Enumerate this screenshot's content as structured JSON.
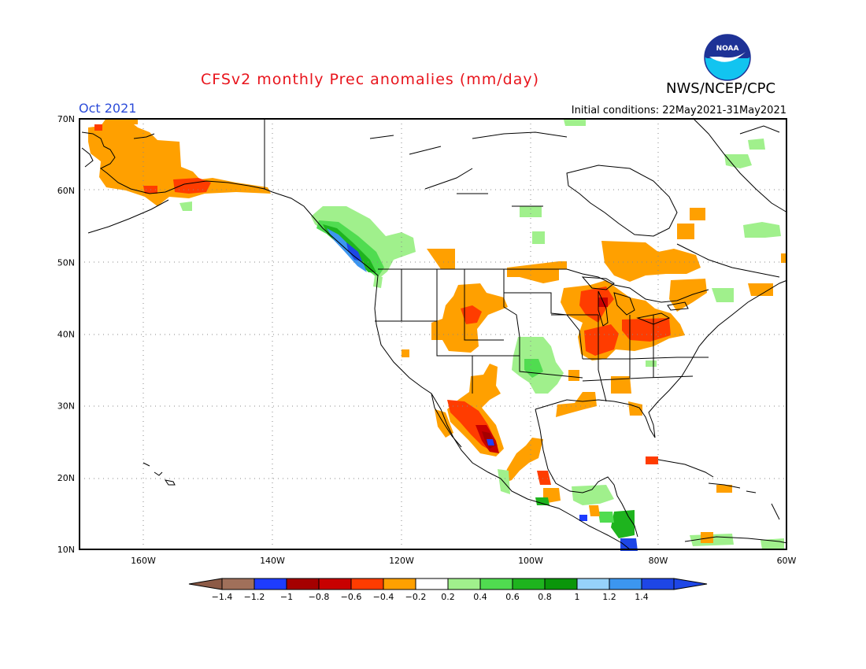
{
  "header": {
    "title": "CFSv2 monthly Prec anomalies (mm/day)",
    "organization": "NWS/NCEP/CPC",
    "logo_text": "NOAA",
    "valid_month": "Oct 2021",
    "initial_conditions": "Initial conditions: 22May2021-31May2021"
  },
  "map": {
    "lat_labels": [
      "70N",
      "60N",
      "50N",
      "40N",
      "30N",
      "20N",
      "10N"
    ],
    "lon_labels": [
      "160W",
      "140W",
      "120W",
      "100W",
      "80W",
      "60W"
    ],
    "lat_range": [
      10,
      70
    ],
    "lon_range": [
      -172,
      -60
    ],
    "grid": "dotted"
  },
  "legend": {
    "ticks": [
      "-1.4",
      "-1.2",
      "-1",
      "-0.8",
      "-0.6",
      "-0.4",
      "-0.2",
      "0.2",
      "0.4",
      "0.6",
      "0.8",
      "1",
      "1.2",
      "1.4"
    ],
    "colors": [
      "#a0705a",
      "#1e3cff",
      "#a50000",
      "#c80000",
      "#ff3c00",
      "#ffa000",
      "#ffffff",
      "#a0f08c",
      "#50dc50",
      "#1eb41e",
      "#0a960a",
      "#96d2fa",
      "#3c96f0",
      "#1e46e6"
    ],
    "low_end_color": "#8c5a46",
    "high_end_color": "#1e46e6"
  },
  "colors": {
    "orange": "#ffa000",
    "red_orange": "#ff3c00",
    "red": "#c80000",
    "dark_red": "#a50000",
    "light_green": "#a0f08c",
    "green": "#50dc50",
    "dark_green": "#1eb41e",
    "blue": "#3c96f0",
    "dark_blue": "#1e3cff"
  }
}
